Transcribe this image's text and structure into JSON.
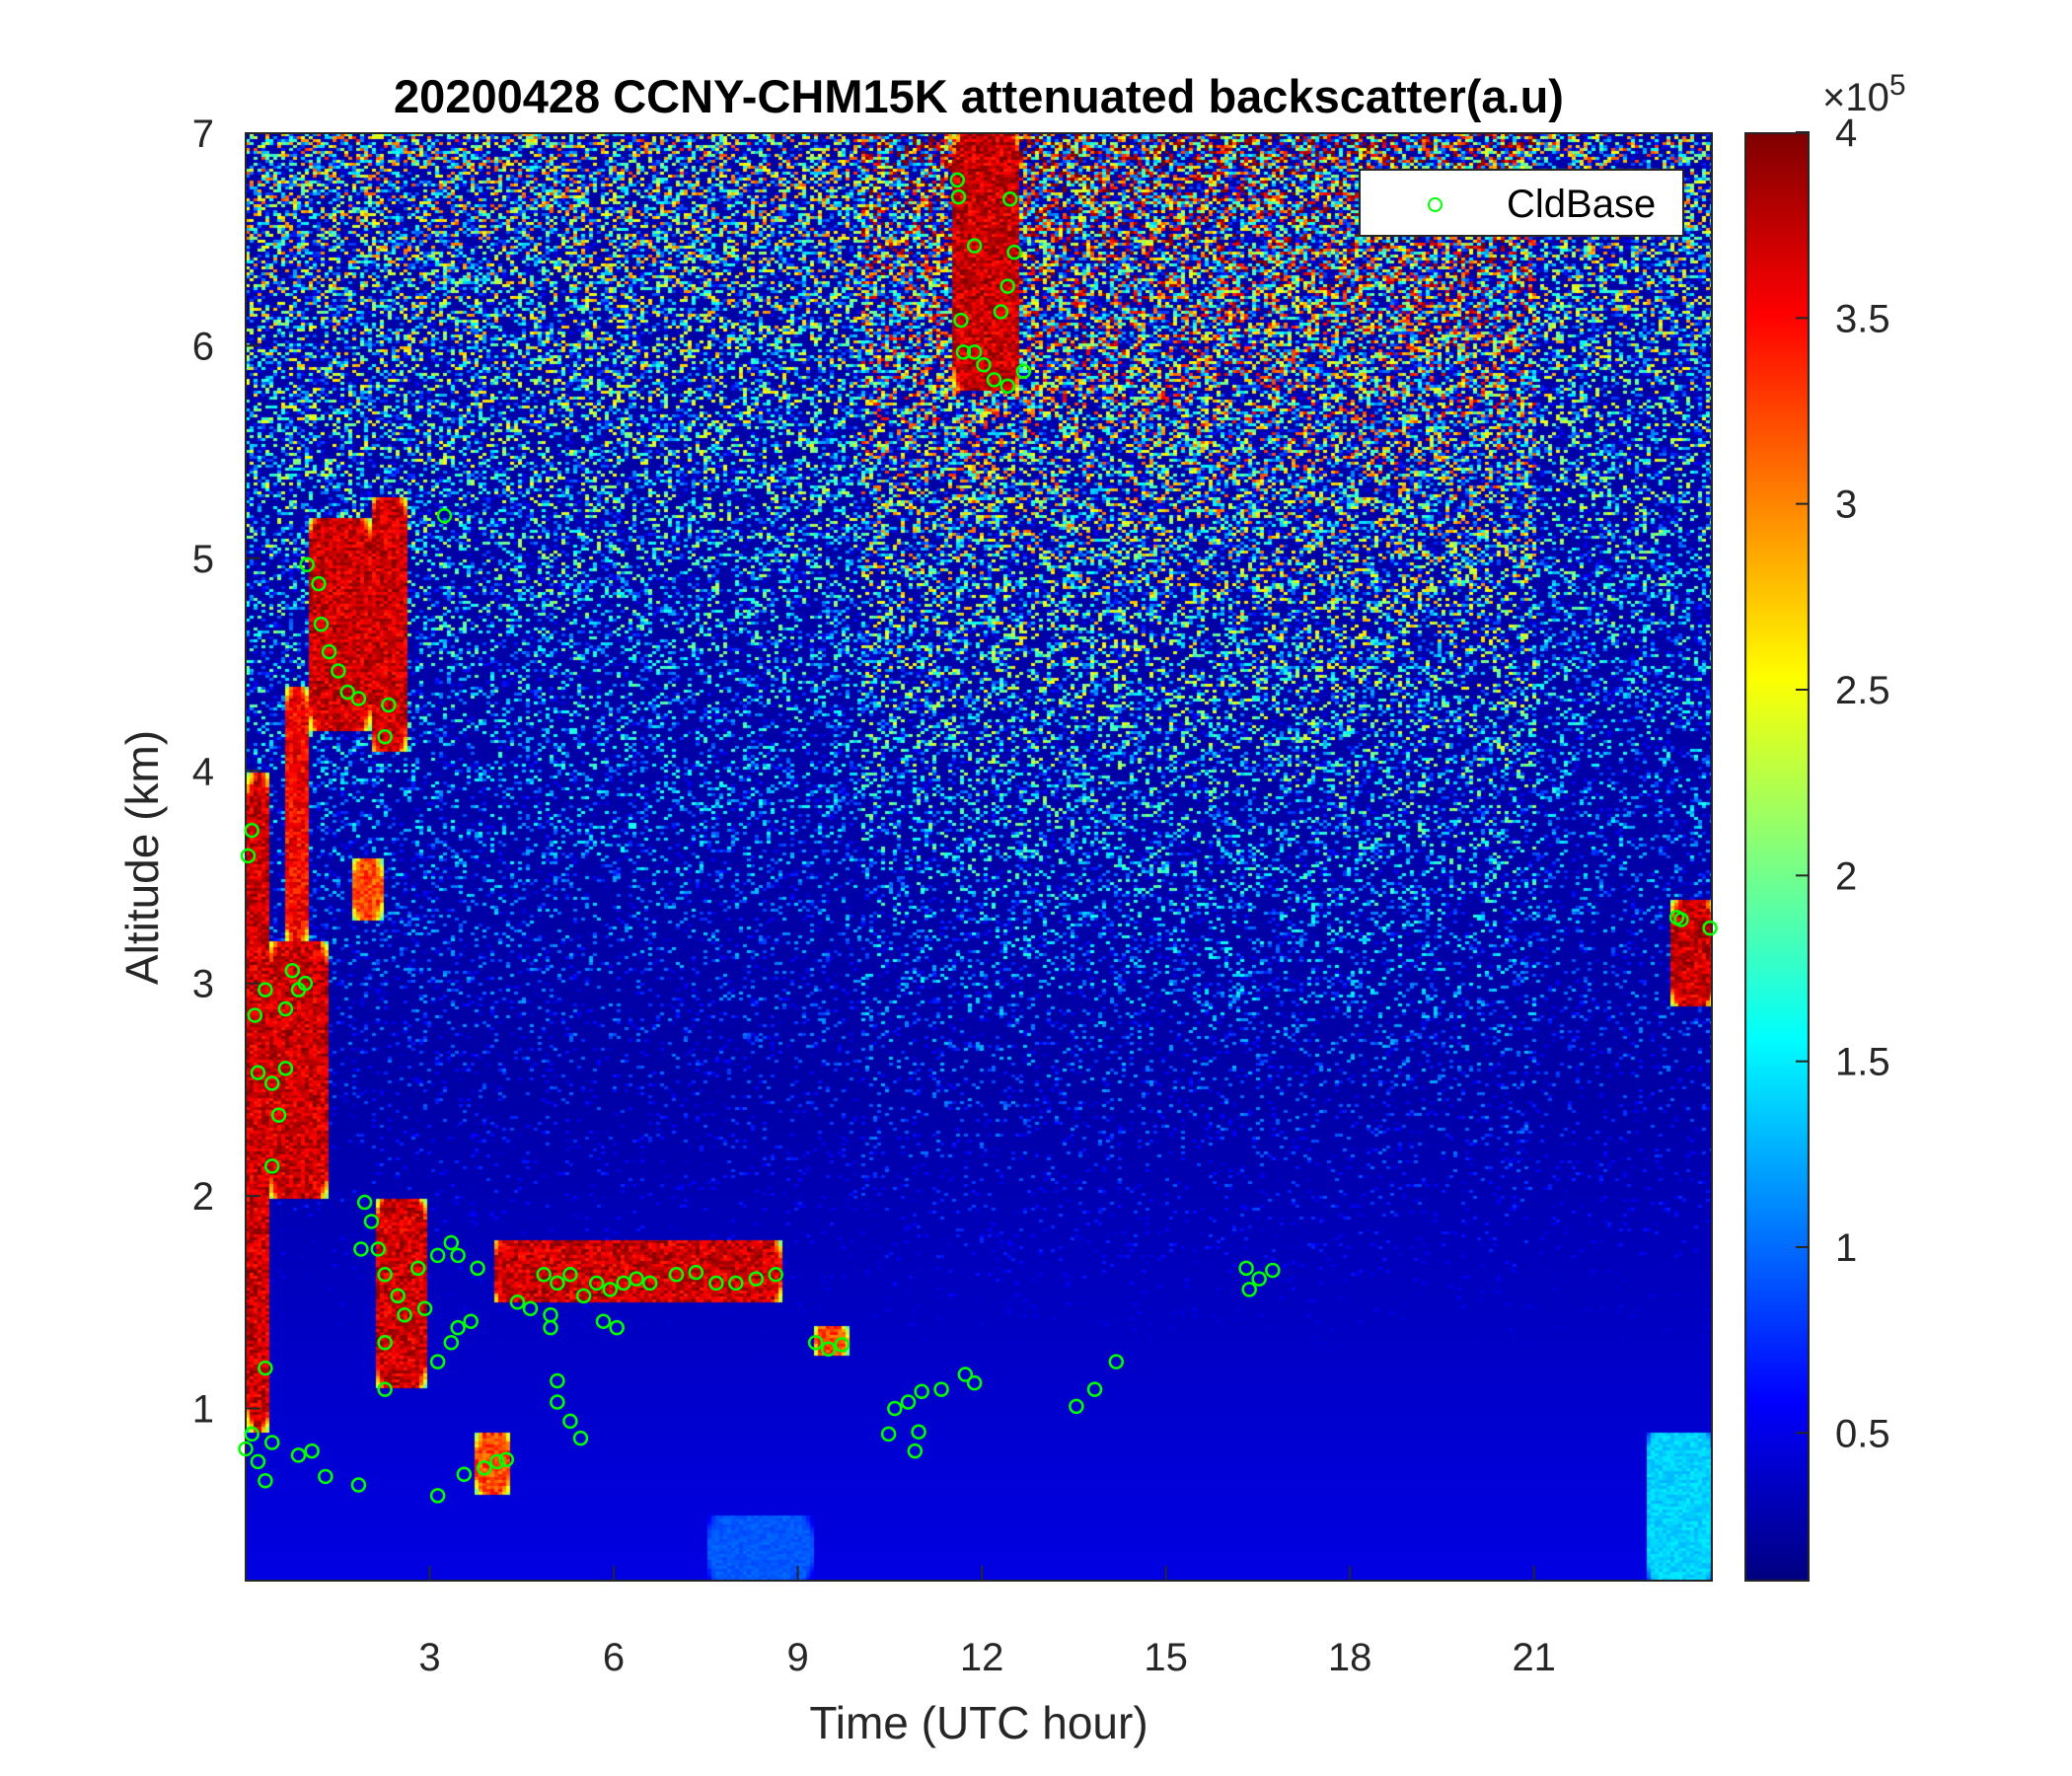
{
  "chart_data": {
    "type": "heatmap",
    "title": "20200428 CCNY-CHM15K attenuated backscatter(a.u)",
    "xlabel": "Time (UTC hour)",
    "ylabel": "Altitude (km)",
    "xlim": [
      0,
      23.9
    ],
    "ylim": [
      0.19,
      7
    ],
    "xticks": [
      3,
      6,
      9,
      12,
      15,
      18,
      21
    ],
    "yticks": [
      1,
      2,
      3,
      4,
      5,
      6,
      7
    ],
    "colorbar": {
      "colormap": "jet",
      "clim": [
        0.1,
        4
      ],
      "ticks": [
        0.5,
        1,
        1.5,
        2,
        2.5,
        3,
        3.5,
        4
      ],
      "tick_labels": [
        "0.5",
        "1",
        "1.5",
        "2",
        "2.5",
        "3",
        "3.5",
        "4"
      ],
      "exponent_label": "×10",
      "exponent": "5"
    },
    "legend": {
      "placement": "top-right",
      "entries": [
        "CldBase"
      ]
    },
    "high_backscatter_regions": [
      {
        "t": [
          0,
          0.35
        ],
        "z": [
          0.9,
          4.0
        ],
        "value": 4
      },
      {
        "t": [
          0.35,
          1.3
        ],
        "z": [
          2.0,
          3.2
        ],
        "value": 4
      },
      {
        "t": [
          0.6,
          1.0
        ],
        "z": [
          3.2,
          4.4
        ],
        "value": 3.8
      },
      {
        "t": [
          1.0,
          2.0
        ],
        "z": [
          4.2,
          5.2
        ],
        "value": 4
      },
      {
        "t": [
          2.0,
          2.6
        ],
        "z": [
          4.1,
          5.3
        ],
        "value": 4
      },
      {
        "t": [
          1.7,
          2.2
        ],
        "z": [
          3.3,
          3.6
        ],
        "value": 3.5
      },
      {
        "t": [
          2.1,
          2.9
        ],
        "z": [
          1.1,
          2.0
        ],
        "value": 4
      },
      {
        "t": [
          4.0,
          8.7
        ],
        "z": [
          1.5,
          1.8
        ],
        "value": 4
      },
      {
        "t": [
          3.7,
          4.3
        ],
        "z": [
          0.6,
          0.9
        ],
        "value": 3.5
      },
      {
        "t": [
          9.2,
          9.8
        ],
        "z": [
          1.25,
          1.4
        ],
        "value": 3.5
      },
      {
        "t": [
          11.5,
          12.6
        ],
        "z": [
          5.8,
          7.0
        ],
        "value": 4
      },
      {
        "t": [
          23.2,
          23.9
        ],
        "z": [
          2.9,
          3.4
        ],
        "value": 4
      },
      {
        "t": [
          22.8,
          23.9
        ],
        "z": [
          0.19,
          0.9
        ],
        "value": 1.5
      },
      {
        "t": [
          7.5,
          9.2
        ],
        "z": [
          0.19,
          0.5
        ],
        "value": 1.0
      }
    ],
    "series": [
      {
        "name": "CldBase",
        "color": "#00ff00",
        "marker": "circle",
        "points": [
          [
            0.04,
            3.6
          ],
          [
            0.1,
            3.72
          ],
          [
            0.15,
            2.85
          ],
          [
            0.2,
            2.58
          ],
          [
            0.43,
            2.53
          ],
          [
            0.65,
            2.6
          ],
          [
            0.54,
            2.38
          ],
          [
            0.43,
            2.14
          ],
          [
            0.32,
            2.97
          ],
          [
            0.65,
            2.88
          ],
          [
            0.86,
            2.97
          ],
          [
            0.97,
            3.0
          ],
          [
            0.76,
            3.06
          ],
          [
            0.32,
            1.19
          ],
          [
            0.1,
            0.88
          ],
          [
            0.2,
            0.75
          ],
          [
            0.32,
            0.66
          ],
          [
            0.43,
            0.84
          ],
          [
            0.0,
            0.81
          ],
          [
            0.86,
            0.78
          ],
          [
            1.08,
            0.8
          ],
          [
            1.3,
            0.68
          ],
          [
            1.84,
            0.64
          ],
          [
            1.0,
            4.97
          ],
          [
            1.19,
            4.88
          ],
          [
            1.23,
            4.69
          ],
          [
            1.36,
            4.56
          ],
          [
            1.51,
            4.47
          ],
          [
            1.66,
            4.37
          ],
          [
            1.84,
            4.34
          ],
          [
            2.33,
            4.31
          ],
          [
            2.27,
            4.16
          ],
          [
            3.24,
            5.2
          ],
          [
            1.94,
            1.97
          ],
          [
            2.05,
            1.88
          ],
          [
            2.16,
            1.75
          ],
          [
            1.88,
            1.75
          ],
          [
            2.27,
            1.63
          ],
          [
            2.48,
            1.53
          ],
          [
            2.59,
            1.44
          ],
          [
            2.81,
            1.66
          ],
          [
            2.92,
            1.47
          ],
          [
            2.27,
            1.31
          ],
          [
            2.27,
            1.09
          ],
          [
            3.13,
            1.72
          ],
          [
            3.35,
            1.78
          ],
          [
            3.46,
            1.72
          ],
          [
            3.46,
            1.38
          ],
          [
            3.67,
            1.41
          ],
          [
            3.78,
            1.66
          ],
          [
            3.35,
            1.31
          ],
          [
            3.13,
            1.22
          ],
          [
            3.13,
            0.59
          ],
          [
            3.56,
            0.69
          ],
          [
            3.89,
            0.72
          ],
          [
            4.1,
            0.75
          ],
          [
            4.25,
            0.76
          ],
          [
            4.43,
            1.5
          ],
          [
            4.64,
            1.47
          ],
          [
            4.86,
            1.63
          ],
          [
            5.08,
            1.59
          ],
          [
            5.29,
            1.63
          ],
          [
            5.51,
            1.53
          ],
          [
            5.72,
            1.59
          ],
          [
            5.94,
            1.56
          ],
          [
            6.16,
            1.59
          ],
          [
            6.37,
            1.61
          ],
          [
            6.59,
            1.59
          ],
          [
            7.02,
            1.63
          ],
          [
            7.34,
            1.64
          ],
          [
            7.67,
            1.59
          ],
          [
            7.99,
            1.59
          ],
          [
            8.32,
            1.61
          ],
          [
            8.64,
            1.63
          ],
          [
            4.97,
            1.44
          ],
          [
            5.83,
            1.41
          ],
          [
            6.05,
            1.38
          ],
          [
            5.08,
            1.13
          ],
          [
            5.08,
            1.03
          ],
          [
            5.29,
            0.94
          ],
          [
            5.46,
            0.86
          ],
          [
            4.97,
            1.38
          ],
          [
            9.29,
            1.31
          ],
          [
            9.5,
            1.28
          ],
          [
            9.72,
            1.3
          ],
          [
            10.48,
            0.88
          ],
          [
            10.58,
            1.0
          ],
          [
            10.8,
            1.03
          ],
          [
            11.02,
            1.08
          ],
          [
            11.34,
            1.09
          ],
          [
            10.91,
            0.8
          ],
          [
            10.97,
            0.89
          ],
          [
            11.73,
            1.16
          ],
          [
            11.88,
            1.12
          ],
          [
            11.6,
            6.78
          ],
          [
            11.62,
            6.7
          ],
          [
            11.66,
            6.12
          ],
          [
            11.7,
            5.97
          ],
          [
            11.88,
            5.97
          ],
          [
            12.03,
            5.91
          ],
          [
            12.2,
            5.84
          ],
          [
            12.42,
            5.81
          ],
          [
            12.68,
            5.88
          ],
          [
            12.31,
            6.16
          ],
          [
            12.42,
            6.28
          ],
          [
            12.53,
            6.44
          ],
          [
            12.46,
            6.69
          ],
          [
            11.88,
            6.47
          ],
          [
            13.54,
            1.01
          ],
          [
            13.84,
            1.09
          ],
          [
            14.19,
            1.22
          ],
          [
            16.31,
            1.66
          ],
          [
            16.36,
            1.56
          ],
          [
            16.52,
            1.61
          ],
          [
            16.74,
            1.65
          ],
          [
            23.33,
            3.31
          ],
          [
            23.4,
            3.3
          ],
          [
            23.87,
            3.26
          ]
        ]
      }
    ]
  }
}
